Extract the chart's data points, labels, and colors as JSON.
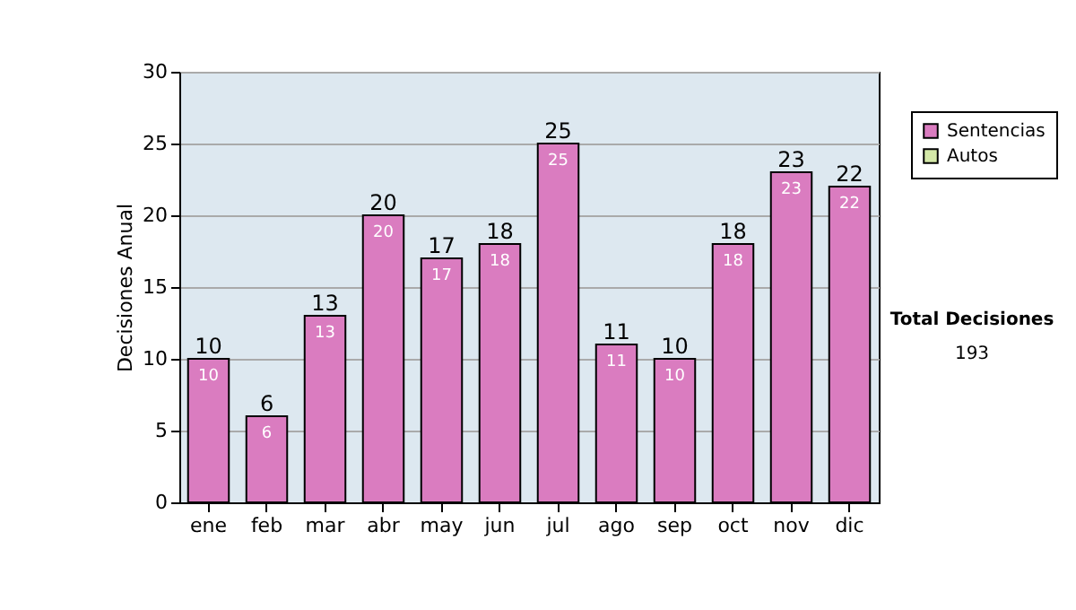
{
  "chart_data": {
    "type": "bar",
    "ylabel": "Decisiones Anual",
    "categories": [
      "ene",
      "feb",
      "mar",
      "abr",
      "may",
      "jun",
      "jul",
      "ago",
      "sep",
      "oct",
      "nov",
      "dic"
    ],
    "stacked": true,
    "series": [
      {
        "name": "Sentencias",
        "color": "#da7cc0",
        "values": [
          10,
          6,
          13,
          20,
          17,
          18,
          25,
          11,
          10,
          18,
          23,
          22
        ],
        "value_labels": [
          "10",
          "6",
          "13",
          "20",
          "17",
          "18",
          "25",
          "11",
          "10",
          "18",
          "23",
          "22"
        ]
      },
      {
        "name": "Autos",
        "color": "#d4e8a8",
        "values": [
          null,
          null,
          null,
          null,
          null,
          null,
          null,
          null,
          null,
          null,
          null,
          null
        ]
      }
    ],
    "totals": [
      "10",
      "6",
      "13",
      "20",
      "17",
      "18",
      "25",
      "11",
      "10",
      "18",
      "23",
      "22"
    ],
    "ylim": [
      0,
      30
    ],
    "yticks": [
      0,
      5,
      10,
      15,
      20,
      25,
      30
    ],
    "grid": "y",
    "legend": "right",
    "annotations": [
      "Total Decisiones",
      "193"
    ]
  }
}
